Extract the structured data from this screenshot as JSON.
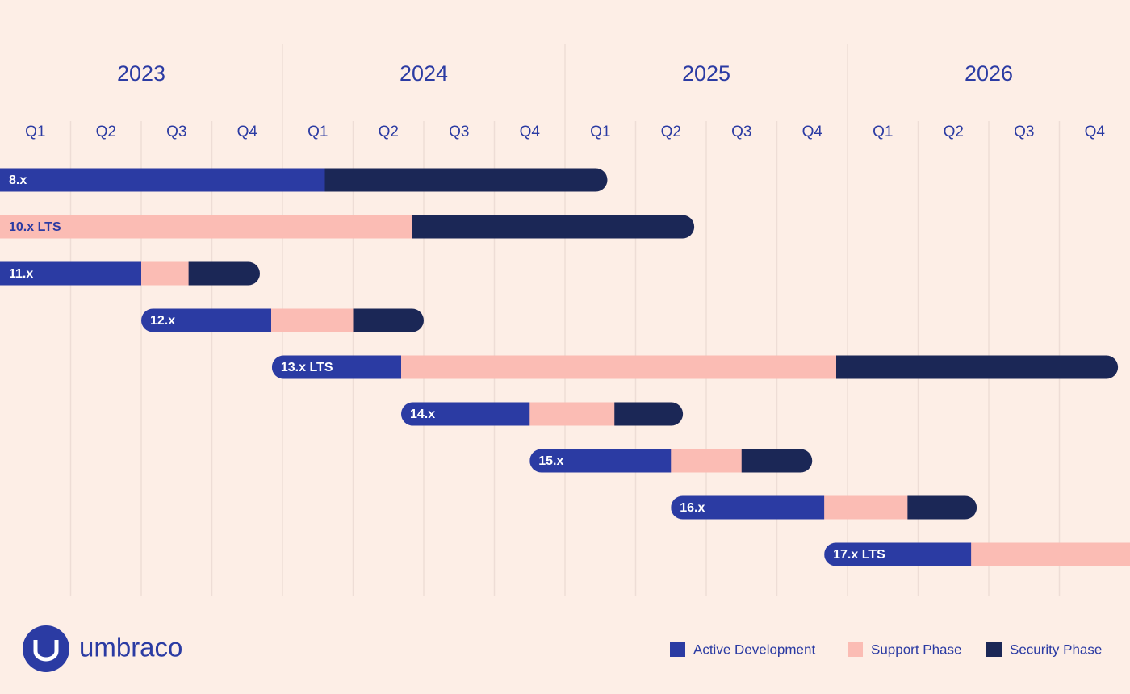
{
  "chart_data": {
    "type": "gantt",
    "years": [
      "2023",
      "2024",
      "2025",
      "2026"
    ],
    "quarters": [
      "Q1",
      "Q2",
      "Q3",
      "Q4",
      "Q1",
      "Q2",
      "Q3",
      "Q4",
      "Q1",
      "Q2",
      "Q3",
      "Q4",
      "Q1",
      "Q2",
      "Q3",
      "Q4"
    ],
    "xlim": [
      0,
      16
    ],
    "grid": true,
    "series": [
      {
        "name": "Active Development",
        "color": "#2b3ba3"
      },
      {
        "name": "Support Phase",
        "color": "#fbbcb4"
      },
      {
        "name": "Security Phase",
        "color": "#1b2756"
      }
    ],
    "tasks": [
      {
        "label": "8.x",
        "phases": [
          [
            0,
            4.6
          ],
          null,
          [
            4.6,
            8.6
          ]
        ]
      },
      {
        "label": "10.x LTS",
        "phases": [
          null,
          [
            0,
            5.84
          ],
          [
            5.84,
            9.83
          ]
        ]
      },
      {
        "label": "11.x",
        "phases": [
          [
            0,
            2.0
          ],
          [
            2.0,
            2.67
          ],
          [
            2.67,
            3.68
          ]
        ]
      },
      {
        "label": "12.x",
        "phases": [
          [
            2.0,
            3.84
          ],
          [
            3.84,
            5.0
          ],
          [
            5.0,
            6.0
          ]
        ]
      },
      {
        "label": "13.x LTS",
        "phases": [
          [
            3.85,
            5.68
          ],
          [
            5.68,
            11.84
          ],
          [
            11.84,
            15.83
          ]
        ]
      },
      {
        "label": "14.x",
        "phases": [
          [
            5.68,
            7.5
          ],
          [
            7.5,
            8.7
          ],
          [
            8.7,
            9.67
          ]
        ]
      },
      {
        "label": "15.x",
        "phases": [
          [
            7.5,
            9.5
          ],
          [
            9.5,
            10.5
          ],
          [
            10.5,
            11.5
          ]
        ]
      },
      {
        "label": "16.x",
        "phases": [
          [
            9.5,
            11.67
          ],
          [
            11.67,
            12.85
          ],
          [
            12.85,
            13.83
          ]
        ]
      },
      {
        "label": "17.x LTS",
        "phases": [
          [
            11.67,
            13.75
          ],
          [
            13.75,
            16
          ],
          null
        ]
      }
    ],
    "brand": "umbraco"
  }
}
